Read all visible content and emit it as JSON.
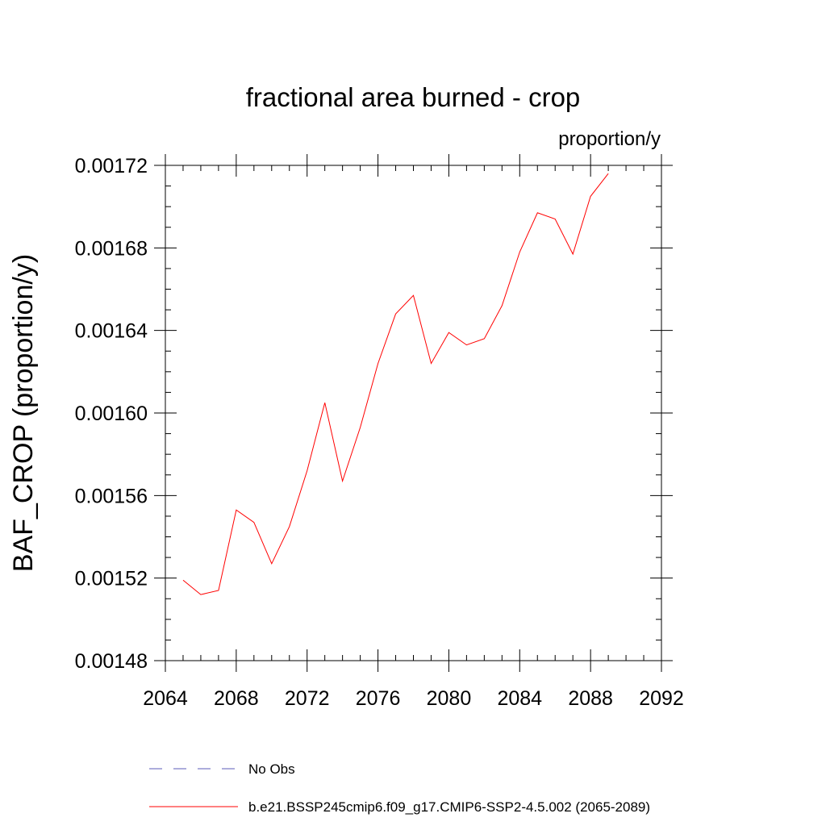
{
  "chart_data": {
    "type": "line",
    "title": "fractional area burned - crop",
    "units_label": "proportion/y",
    "xlabel": "",
    "ylabel": "BAF_CROP  (proportion/y)",
    "xlim": [
      2064,
      2092
    ],
    "ylim": [
      0.00148,
      0.00172
    ],
    "x_ticks": [
      2064,
      2068,
      2072,
      2076,
      2080,
      2084,
      2088,
      2092
    ],
    "x_tick_labels": [
      "2064",
      "2068",
      "2072",
      "2076",
      "2080",
      "2084",
      "2088",
      "2092"
    ],
    "y_ticks": [
      0.00148,
      0.00152,
      0.00156,
      0.0016,
      0.00164,
      0.00168,
      0.00172
    ],
    "y_tick_labels": [
      "0.00148",
      "0.00152",
      "0.00156",
      "0.00160",
      "0.00164",
      "0.00168",
      "0.00172"
    ],
    "grid": false,
    "legend_position": "bottom",
    "series": [
      {
        "name": "b.e21.BSSP245cmip6.f09_g17.CMIP6-SSP2-4.5.002 (2065-2089)",
        "color": "#ff0000",
        "line_style": "solid",
        "x": [
          2065,
          2066,
          2067,
          2068,
          2069,
          2070,
          2071,
          2072,
          2073,
          2074,
          2075,
          2076,
          2077,
          2078,
          2079,
          2080,
          2081,
          2082,
          2083,
          2084,
          2085,
          2086,
          2087,
          2088,
          2089
        ],
        "y": [
          0.001519,
          0.001512,
          0.001514,
          0.001553,
          0.001547,
          0.001527,
          0.001545,
          0.001572,
          0.001605,
          0.001567,
          0.001593,
          0.001624,
          0.001648,
          0.001657,
          0.001624,
          0.001639,
          0.001633,
          0.001636,
          0.001652,
          0.001678,
          0.001697,
          0.001694,
          0.001677,
          0.001705,
          0.001716
        ]
      }
    ],
    "legend_entries": [
      {
        "label": "No Obs",
        "color": "#5b5bb8",
        "line_style": "dashed"
      },
      {
        "label": "b.e21.BSSP245cmip6.f09_g17.CMIP6-SSP2-4.5.002 (2065-2089)",
        "color": "#ff0000",
        "line_style": "solid"
      }
    ]
  }
}
